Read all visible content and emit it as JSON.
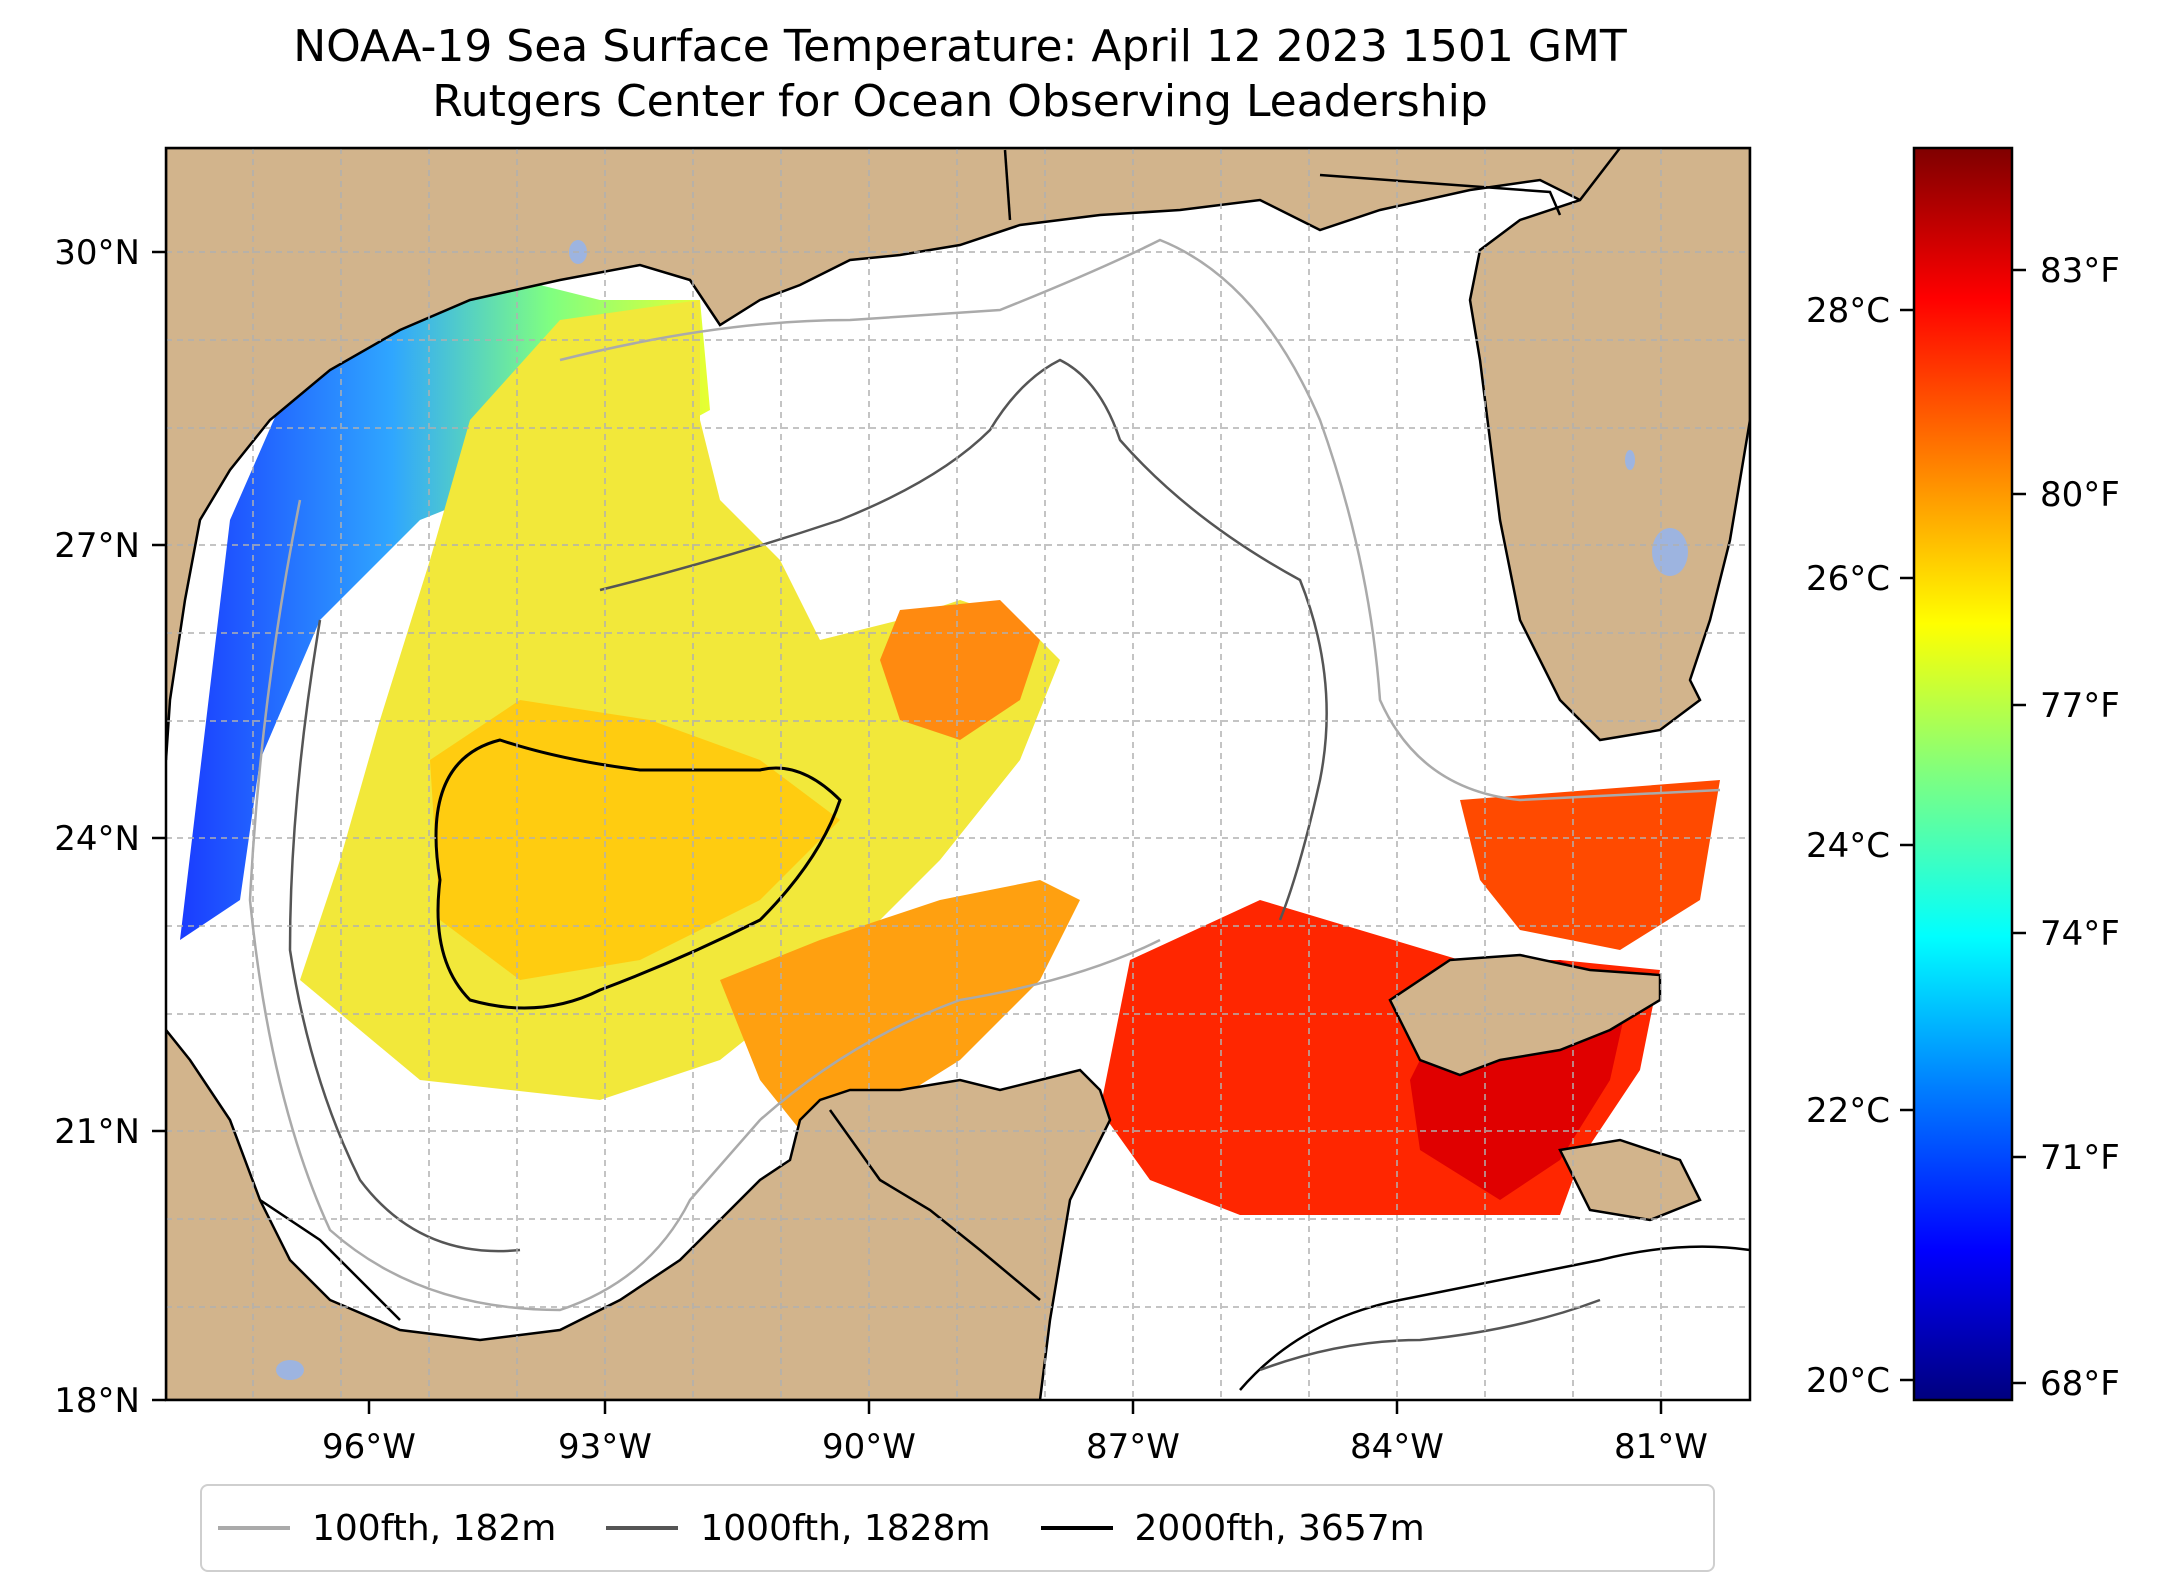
{
  "title": {
    "line1": "NOAA-19 Sea Surface Temperature: April 12 2023 1501 GMT",
    "line2": "Rutgers Center for Ocean Observing Leadership"
  },
  "map": {
    "lat_labels": [
      "30°N",
      "27°N",
      "24°N",
      "21°N",
      "18°N"
    ],
    "lon_labels": [
      "96°W",
      "93°W",
      "90°W",
      "87°W",
      "84°W",
      "81°W"
    ],
    "land_color": "#d2b48c",
    "lake_color": "#9db4e0",
    "no_data_color": "#ffffff"
  },
  "colorbar": {
    "colormap": "jet",
    "celsius_ticks": [
      "28°C",
      "26°C",
      "24°C",
      "22°C",
      "20°C"
    ],
    "fahrenheit_ticks": [
      "83°F",
      "80°F",
      "77°F",
      "74°F",
      "71°F",
      "68°F"
    ],
    "stops": [
      "#00007f",
      "#0000ff",
      "#007fff",
      "#00ffff",
      "#7fff7f",
      "#ffff00",
      "#ff7f00",
      "#ff0000",
      "#7f0000"
    ]
  },
  "legend": {
    "items": [
      {
        "label": "100fth, 182m",
        "color": "#aaaaaa"
      },
      {
        "label": "1000fth, 1828m",
        "color": "#555555"
      },
      {
        "label": "2000fth, 3657m",
        "color": "#000000"
      }
    ]
  }
}
